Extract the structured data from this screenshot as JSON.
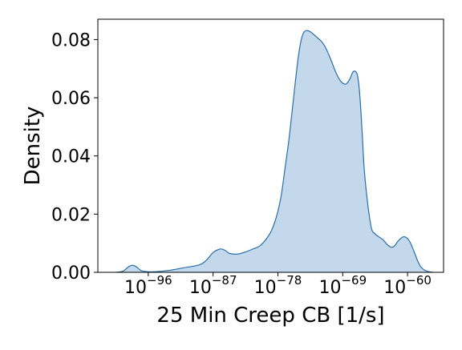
{
  "chart_data": {
    "type": "area",
    "title": "",
    "xlabel": "25 Min Creep CB [1/s]",
    "ylabel": "Density",
    "x_scale": "log",
    "x_range_exponent": [
      -103,
      -55
    ],
    "ylim": [
      0,
      0.087
    ],
    "grid": false,
    "legend": "none",
    "y_ticks": [
      {
        "value": 0.0,
        "label": "0.00"
      },
      {
        "value": 0.02,
        "label": "0.02"
      },
      {
        "value": 0.04,
        "label": "0.04"
      },
      {
        "value": 0.06,
        "label": "0.06"
      },
      {
        "value": 0.08,
        "label": "0.08"
      }
    ],
    "x_ticks": [
      {
        "exponent": -96,
        "base": "10",
        "power": "−96"
      },
      {
        "exponent": -87,
        "base": "10",
        "power": "−87"
      },
      {
        "exponent": -78,
        "base": "10",
        "power": "−78"
      },
      {
        "exponent": -69,
        "base": "10",
        "power": "−69"
      },
      {
        "exponent": -60,
        "base": "10",
        "power": "−60"
      }
    ],
    "series": [
      {
        "fill_color": "#c3d8ea",
        "line_color": "#2b6ea6",
        "x_exponent": [
          -100.5,
          -99.5,
          -98.8,
          -98.2,
          -97.6,
          -97.0,
          -96.2,
          -95.0,
          -93.0,
          -91.0,
          -89.0,
          -88.0,
          -87.0,
          -86.2,
          -85.8,
          -85.3,
          -84.8,
          -84.3,
          -83.5,
          -82.5,
          -81.5,
          -80.5,
          -79.6,
          -79.0,
          -78.5,
          -78.0,
          -77.5,
          -77.0,
          -76.5,
          -76.0,
          -75.6,
          -75.2,
          -74.8,
          -74.4,
          -74.0,
          -73.5,
          -73.0,
          -72.5,
          -72.0,
          -71.5,
          -71.0,
          -70.5,
          -70.0,
          -69.5,
          -69.0,
          -68.5,
          -68.0,
          -67.6,
          -67.2,
          -66.9,
          -66.6,
          -66.3,
          -66.0,
          -65.5,
          -65.0,
          -64.5,
          -64.0,
          -63.4,
          -62.8,
          -62.2,
          -61.8,
          -61.4,
          -61.0,
          -60.6,
          -60.2,
          -59.8,
          -59.4,
          -59.0,
          -58.6,
          -58.2,
          -57.6,
          -57.0,
          -56.5
        ],
        "density": [
          0.0,
          0.0004,
          0.0018,
          0.0024,
          0.0018,
          0.0006,
          0.0002,
          0.0002,
          0.0007,
          0.0016,
          0.0025,
          0.004,
          0.0068,
          0.0079,
          0.008,
          0.0075,
          0.0066,
          0.0063,
          0.0063,
          0.007,
          0.008,
          0.0091,
          0.0115,
          0.0138,
          0.0168,
          0.021,
          0.027,
          0.036,
          0.045,
          0.056,
          0.065,
          0.0735,
          0.0795,
          0.0825,
          0.0831,
          0.0827,
          0.0817,
          0.0806,
          0.0795,
          0.0778,
          0.0752,
          0.0722,
          0.069,
          0.0665,
          0.065,
          0.0648,
          0.0665,
          0.0688,
          0.069,
          0.067,
          0.06,
          0.048,
          0.035,
          0.023,
          0.015,
          0.0132,
          0.0122,
          0.0112,
          0.0095,
          0.0086,
          0.0091,
          0.0105,
          0.0115,
          0.0122,
          0.012,
          0.011,
          0.009,
          0.0065,
          0.004,
          0.002,
          0.0007,
          0.0002,
          0.0
        ]
      }
    ]
  }
}
